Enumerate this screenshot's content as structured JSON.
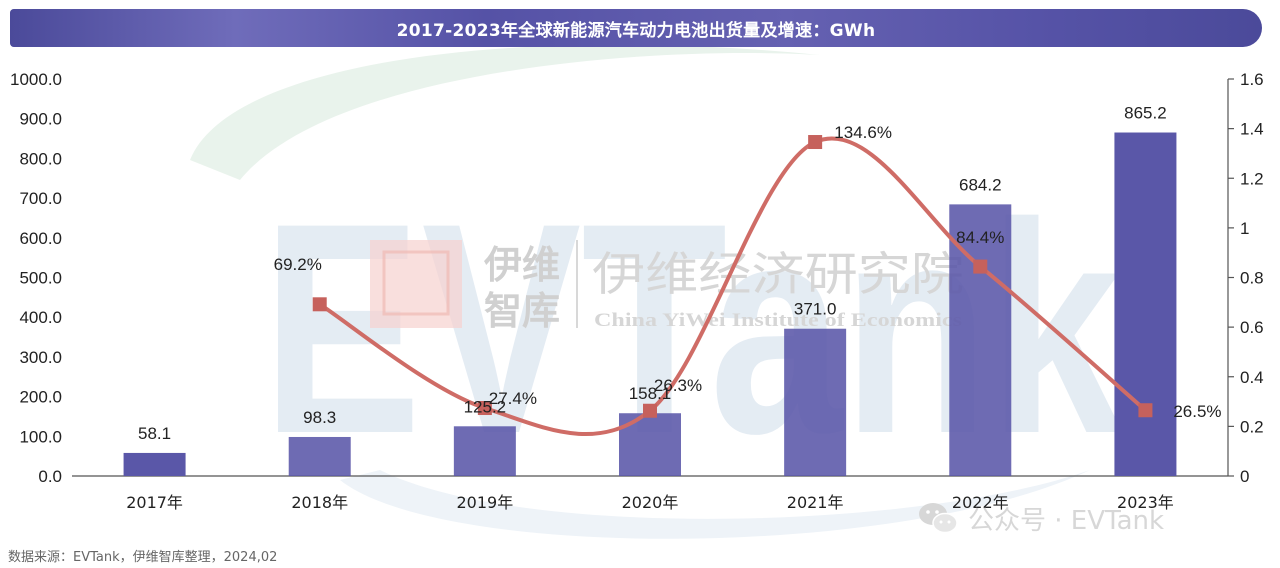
{
  "title": "2017-2023年全球新能源汽车动力电池出货量及增速：GWh",
  "source": "数据来源：EVTank，伊维智库整理，2024,02",
  "watermarks": {
    "center_cn": "伊维经济研究院",
    "center_en": "China YiWei Institute of Economics",
    "logo_cn_line1": "伊维",
    "logo_cn_line2": "智库",
    "big_logo": "EVTank",
    "wechat": "公众号 · EVTank"
  },
  "colors": {
    "bar": "#5a57a8",
    "line": "#cf6c66",
    "marker": "#c6615c",
    "title_bg": "#5552a6"
  },
  "icons": [
    "wechat-icon"
  ],
  "chart_data": {
    "type": "bar",
    "categories": [
      "2017年",
      "2018年",
      "2019年",
      "2020年",
      "2021年",
      "2022年",
      "2023年"
    ],
    "series": [
      {
        "type": "bar",
        "axis": "left",
        "values": [
          58.1,
          98.3,
          125.2,
          158.1,
          371.0,
          684.2,
          865.2
        ],
        "labels": [
          "58.1",
          "98.3",
          "125.2",
          "158.1",
          "371.0",
          "684.2",
          "865.2"
        ]
      },
      {
        "type": "line",
        "axis": "right",
        "values": [
          null,
          0.692,
          0.274,
          0.263,
          1.346,
          0.844,
          0.265
        ],
        "labels": [
          "",
          "69.2%",
          "27.4%",
          "26.3%",
          "134.6%",
          "84.4%",
          "26.5%"
        ]
      }
    ],
    "yleft": {
      "range": [
        0,
        1000
      ],
      "ticks": [
        0,
        100,
        200,
        300,
        400,
        500,
        600,
        700,
        800,
        900,
        1000
      ],
      "tick_labels": [
        "0.0",
        "100.0",
        "200.0",
        "300.0",
        "400.0",
        "500.0",
        "600.0",
        "700.0",
        "800.0",
        "900.0",
        "1000.0"
      ]
    },
    "yright": {
      "range": [
        0,
        1.6
      ],
      "ticks": [
        0,
        0.2,
        0.4,
        0.6,
        0.8,
        1,
        1.2,
        1.4,
        1.6
      ],
      "tick_labels": [
        "0",
        "0.2",
        "0.4",
        "0.6",
        "0.8",
        "1",
        "1.2",
        "1.4",
        "1.6"
      ]
    },
    "grid": false,
    "legend": "none"
  }
}
